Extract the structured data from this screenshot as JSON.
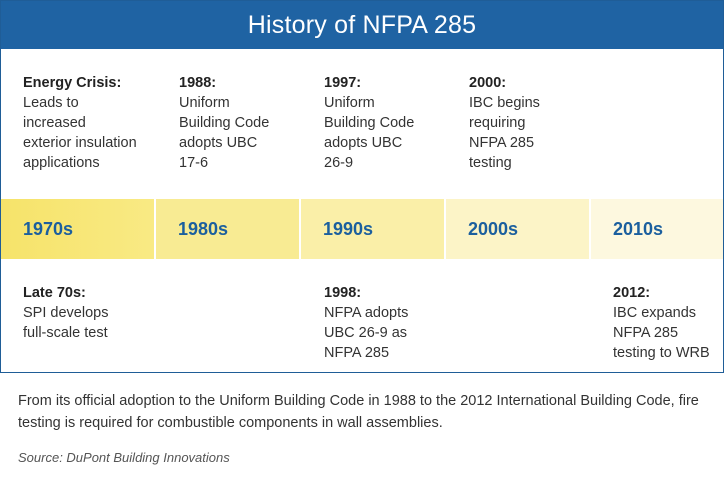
{
  "title": "History of NFPA 285",
  "top_events": [
    {
      "head": "Energy Crisis:",
      "body": [
        "Leads to",
        "increased",
        "exterior insulation",
        "applications"
      ]
    },
    {
      "head": "1988:",
      "body": [
        "Uniform",
        "Building Code",
        "adopts UBC",
        "17-6"
      ]
    },
    {
      "head": "1997:",
      "body": [
        "Uniform",
        "Building Code",
        "adopts UBC",
        "26-9"
      ]
    },
    {
      "head": "2000:",
      "body": [
        "IBC begins",
        "requiring",
        "NFPA 285",
        "testing"
      ]
    }
  ],
  "decades": [
    "1970s",
    "1980s",
    "1990s",
    "2000s",
    "2010s"
  ],
  "bottom_events": [
    {
      "head": "Late 70s:",
      "body": [
        "SPI develops",
        "full-scale test"
      ]
    },
    {
      "head": "1998:",
      "body": [
        "NFPA adopts",
        "UBC 26-9 as",
        "NFPA 285"
      ]
    },
    {
      "head": "2012:",
      "body": [
        "IBC expands",
        "NFPA 285",
        "testing to WRB"
      ]
    }
  ],
  "caption": "From its official adoption to the Uniform Building Code in 1988 to the 2012 International Building Code, fire testing is required for combustible components in wall assemblies.",
  "source": "Source: DuPont Building Innovations",
  "colors": {
    "header": "#1f63a3",
    "decade_text": "#1b5f9e",
    "band_start": "#f6e36a",
    "band_end": "#fdf8df"
  }
}
